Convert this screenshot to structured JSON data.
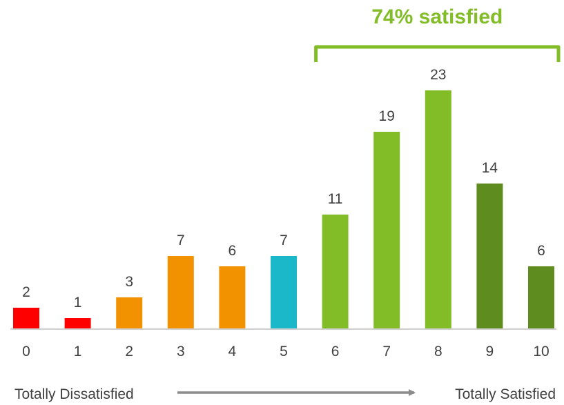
{
  "colors": {
    "red": "#ff0000",
    "orange": "#f39200",
    "teal": "#1ab8c8",
    "light_green": "#82bc26",
    "dark_green": "#5f8c1f",
    "bracket_green": "#82bc26",
    "axis": "#bfbfbf",
    "arrow": "#8c8c8c",
    "text": "#404040"
  },
  "annotations": {
    "satisfied_label": "74% satisfied",
    "left_end_label": "Totally Dissatisfied",
    "right_end_label": "Totally Satisfied"
  },
  "chart_data": {
    "type": "bar",
    "title": "",
    "xlabel": "",
    "ylabel": "",
    "categories": [
      "0",
      "1",
      "2",
      "3",
      "4",
      "5",
      "6",
      "7",
      "8",
      "9",
      "10"
    ],
    "values": [
      2,
      1,
      3,
      7,
      6,
      7,
      11,
      19,
      23,
      14,
      6
    ],
    "bar_colors": [
      "red",
      "red",
      "orange",
      "orange",
      "orange",
      "teal",
      "light_green",
      "light_green",
      "light_green",
      "dark_green",
      "dark_green"
    ],
    "ylim": [
      0,
      23
    ],
    "grid": false,
    "bracket": {
      "from_category": "6",
      "to_category": "10",
      "label": "74% satisfied"
    }
  }
}
